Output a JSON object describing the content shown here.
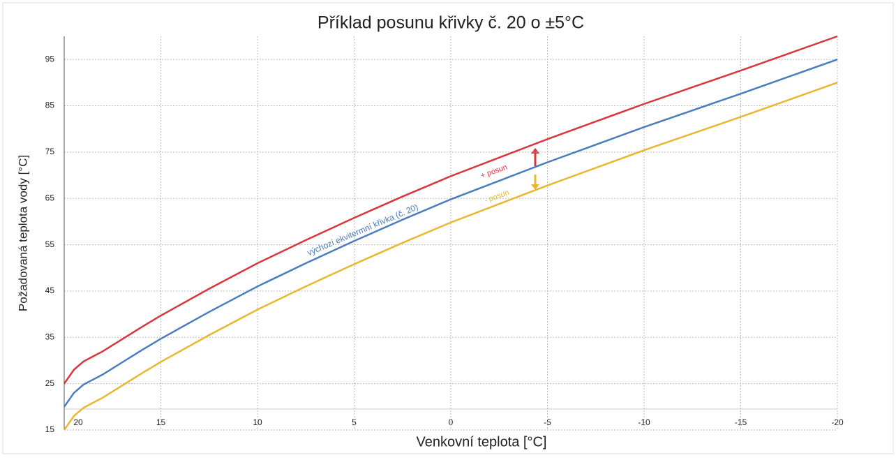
{
  "chart_data": {
    "type": "line",
    "title": "Příklad posunu křivky č. 20 o ±5°C",
    "x_label": "Venkovní teplota [°C]",
    "y_label": "Požadovaná teplota vody [°C]",
    "x": [
      20,
      19.5,
      19,
      18,
      17,
      16,
      15,
      12.5,
      10,
      7.5,
      5,
      2.5,
      0,
      -2.5,
      -5,
      -7.5,
      -10,
      -12.5,
      -15,
      -17.5,
      -20
    ],
    "series": [
      {
        "name": "+ posun",
        "color": "#d9363e",
        "values": [
          25,
          28,
          29.8,
          32,
          34.6,
          37.2,
          39.7,
          45.5,
          51,
          56,
          60.8,
          65.4,
          69.8,
          73.8,
          77.8,
          81.6,
          85.4,
          89,
          92.6,
          96.3,
          100
        ]
      },
      {
        "name": "výchozí ekvitermní křivka (č. 20)",
        "color": "#4a7cc0",
        "values": [
          20,
          23,
          24.8,
          27,
          29.6,
          32.2,
          34.7,
          40.5,
          46,
          51,
          55.8,
          60.4,
          64.8,
          68.8,
          72.8,
          76.6,
          80.4,
          84,
          87.6,
          91.3,
          95
        ]
      },
      {
        "name": "- posun",
        "color": "#e8b830",
        "values": [
          15,
          18,
          19.8,
          22,
          24.6,
          27.2,
          29.7,
          35.5,
          41,
          46,
          50.8,
          55.4,
          59.8,
          63.8,
          67.8,
          71.6,
          75.4,
          79,
          82.6,
          86.3,
          90
        ]
      }
    ],
    "xlim": [
      20,
      -20
    ],
    "xticks": [
      20,
      15,
      10,
      5,
      0,
      -5,
      -10,
      -15,
      -20
    ],
    "ylim": [
      15,
      100
    ],
    "yticks": [
      15,
      25,
      35,
      45,
      55,
      65,
      75,
      85,
      95
    ],
    "grid": true
  }
}
